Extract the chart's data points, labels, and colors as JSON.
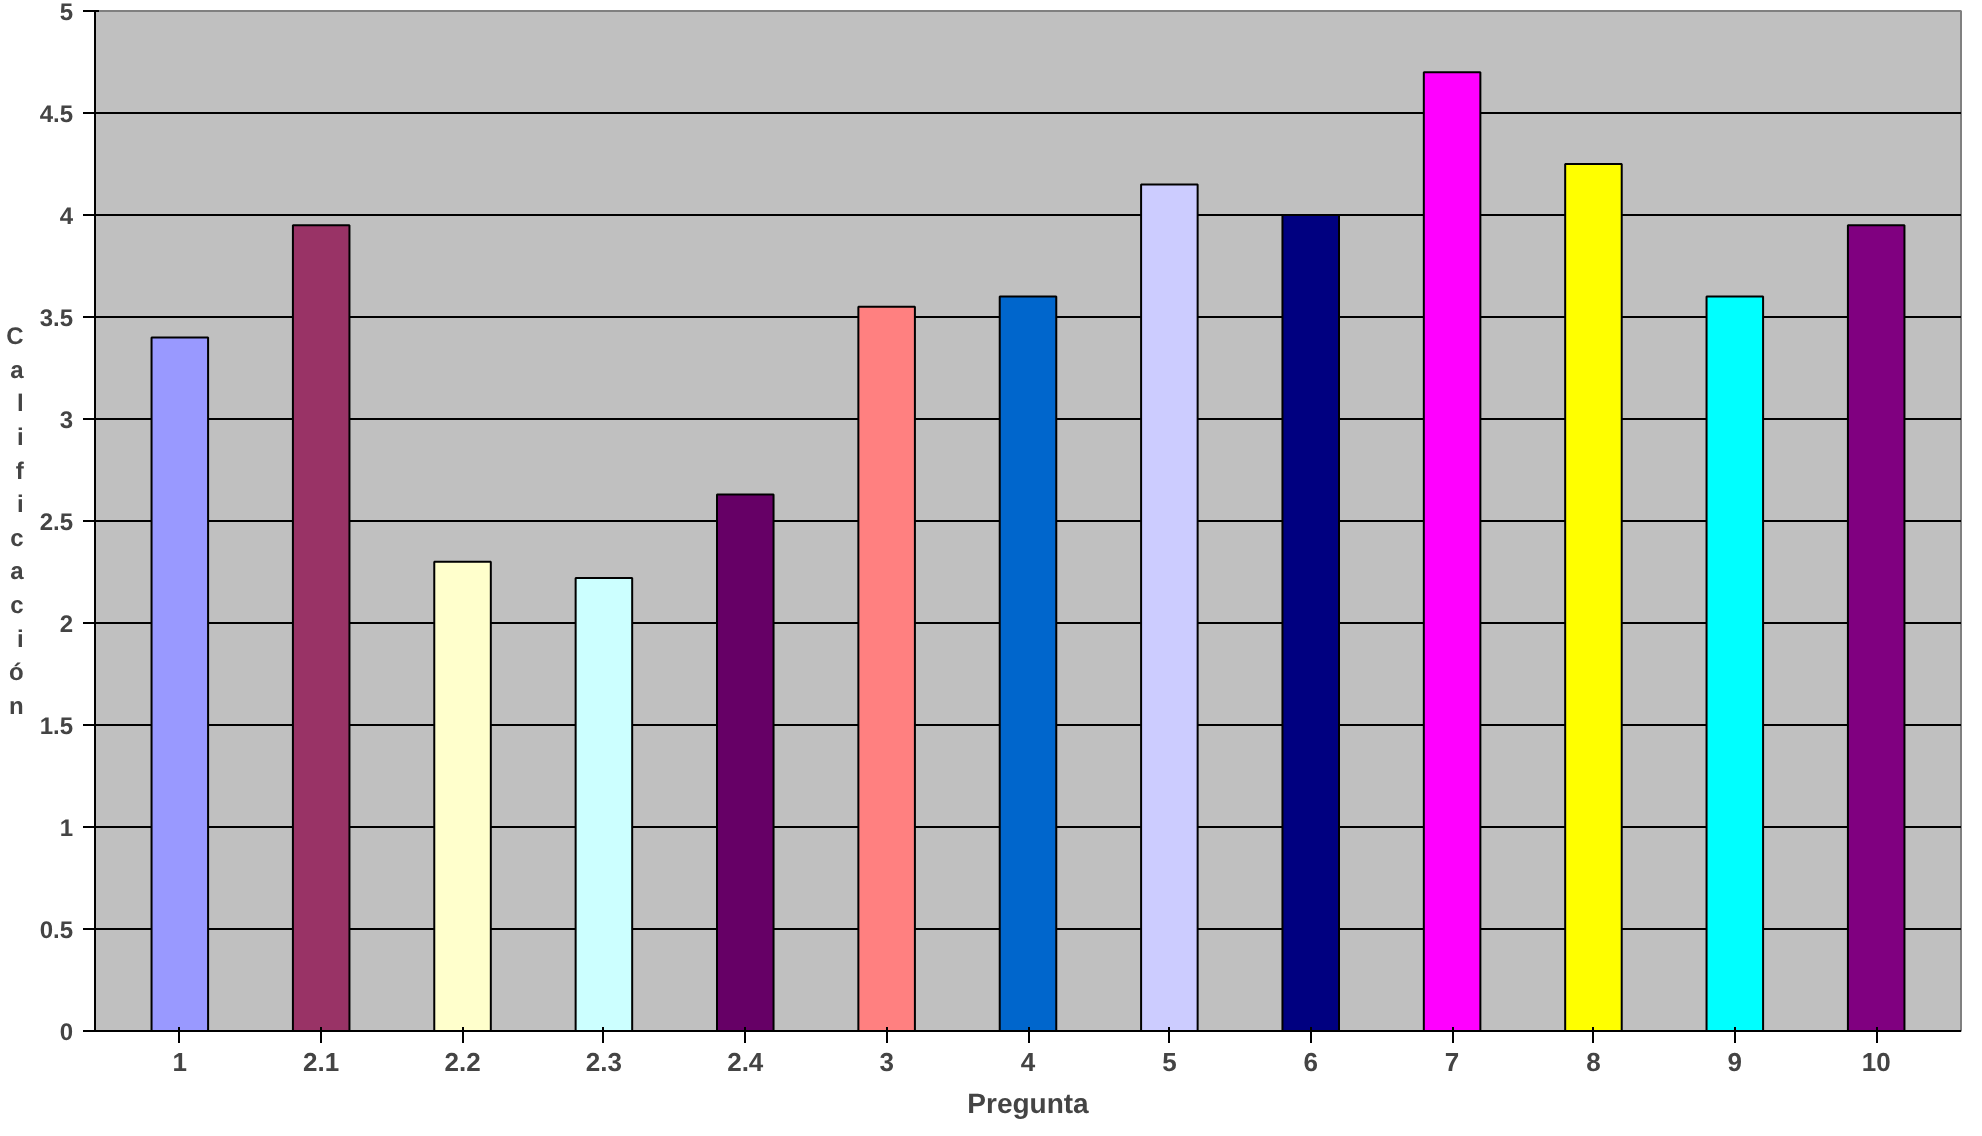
{
  "chart_data": {
    "type": "bar",
    "xlabel": "Pregunta",
    "ylabel": "Calificación",
    "categories": [
      "1",
      "2.1",
      "2.2",
      "2.3",
      "2.4",
      "3",
      "4",
      "5",
      "6",
      "7",
      "8",
      "9",
      "10"
    ],
    "values": [
      3.4,
      3.95,
      2.3,
      2.22,
      2.63,
      3.55,
      3.6,
      4.15,
      4.0,
      4.7,
      4.25,
      3.6,
      3.95
    ],
    "colors": [
      "#9999ff",
      "#993366",
      "#ffffcc",
      "#ccffff",
      "#660066",
      "#ff8080",
      "#0066cc",
      "#ccccff",
      "#000080",
      "#ff00ff",
      "#ffff00",
      "#00ffff",
      "#800080"
    ],
    "ylim": [
      0,
      5
    ],
    "yticks": [
      0,
      0.5,
      1,
      1.5,
      2,
      2.5,
      3,
      3.5,
      4,
      4.5,
      5
    ],
    "grid": "y"
  }
}
